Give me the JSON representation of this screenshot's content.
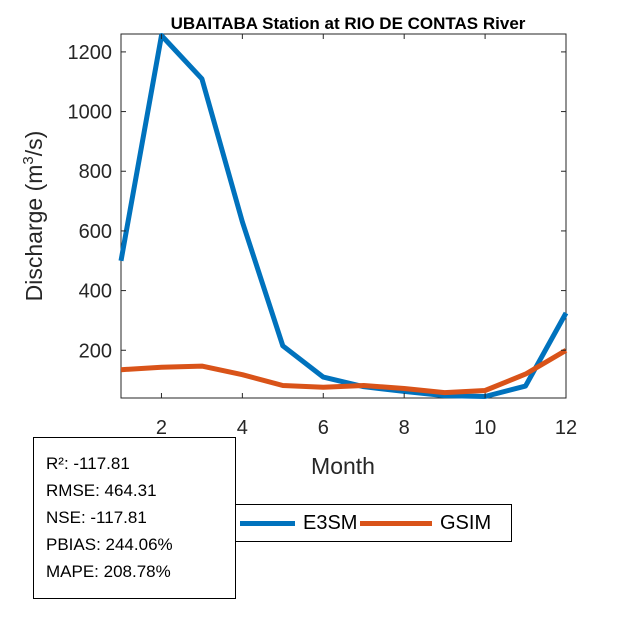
{
  "chart_data": {
    "type": "line",
    "title": "UBAITABA  Station at  RIO DE CONTAS  River",
    "xlabel": "Month",
    "ylabel": "Discharge (m³/s)",
    "ylabel_base": "Discharge (m",
    "ylabel_sup": "3",
    "ylabel_end": "/s)",
    "xlim": [
      1,
      12
    ],
    "ylim": [
      40,
      1260
    ],
    "xticks": [
      2,
      4,
      6,
      8,
      10,
      12
    ],
    "yticks": [
      200,
      400,
      600,
      800,
      1000,
      1200
    ],
    "x": [
      1,
      2,
      3,
      4,
      5,
      6,
      7,
      8,
      9,
      10,
      11,
      12
    ],
    "series": [
      {
        "name": "E3SM",
        "color": "#0072BD",
        "values": [
          500,
          1255,
          1110,
          630,
          215,
          110,
          78,
          62,
          48,
          45,
          80,
          325
        ]
      },
      {
        "name": "GSIM",
        "color": "#D95319",
        "values": [
          135,
          143,
          147,
          118,
          82,
          76,
          82,
          72,
          58,
          65,
          120,
          200
        ]
      }
    ]
  },
  "stats": [
    "R²: -117.81",
    "RMSE: 464.31",
    "NSE: -117.81",
    "PBIAS: 244.06%",
    "MAPE: 208.78%"
  ]
}
